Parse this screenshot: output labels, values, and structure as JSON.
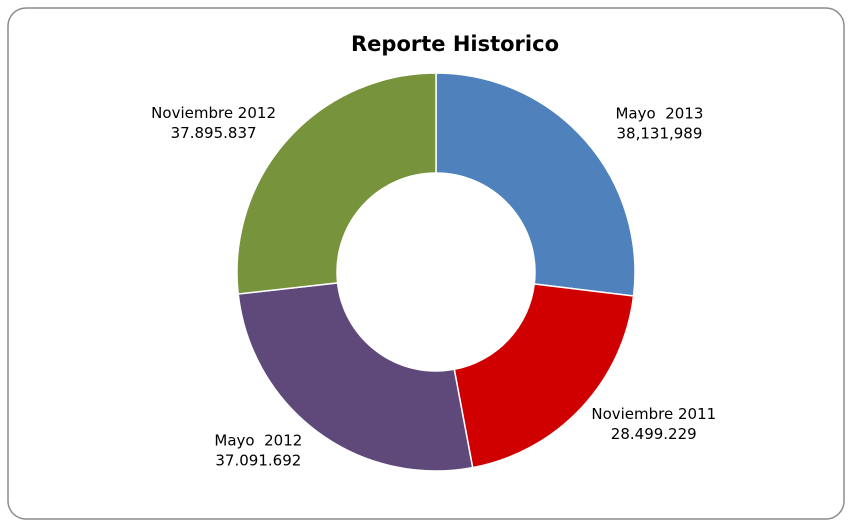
{
  "chart_data": {
    "type": "donut",
    "title": "Reporte Historico",
    "categories": [
      "Mayo  2013",
      "Noviembre 2011",
      "Mayo  2012",
      "Noviembre 2012"
    ],
    "values": [
      38131989,
      28499229,
      37091692,
      37895837
    ],
    "value_labels": [
      "38,131,989",
      "28.499.229",
      "37.091.692",
      "37.895.837"
    ],
    "colors": [
      "#4f81bd",
      "#d00000",
      "#5f497a",
      "#77933c"
    ]
  }
}
